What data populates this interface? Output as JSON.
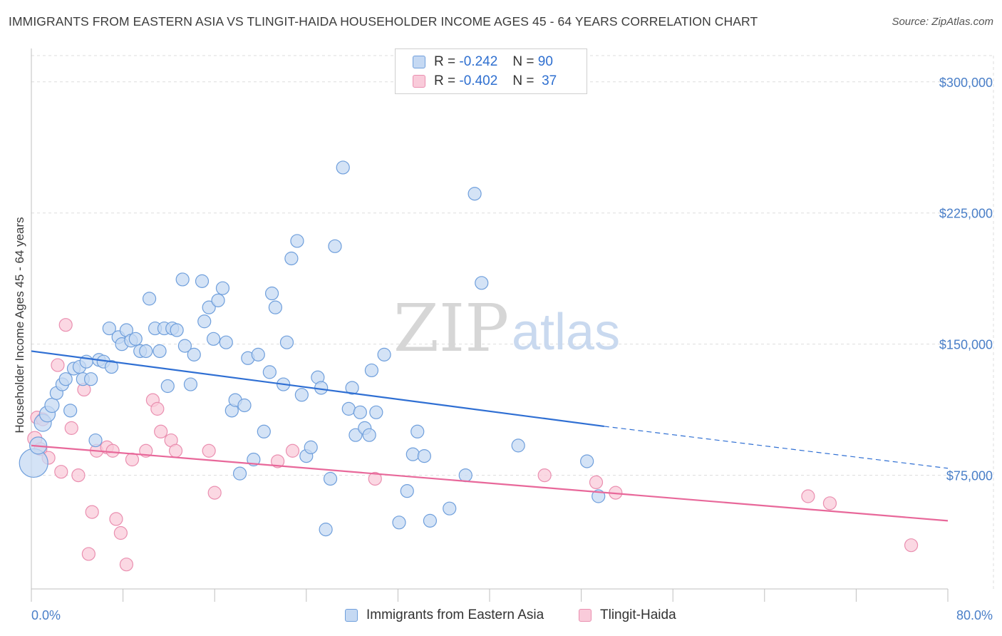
{
  "title": "IMMIGRANTS FROM EASTERN ASIA VS TLINGIT-HAIDA HOUSEHOLDER INCOME AGES 45 - 64 YEARS CORRELATION CHART",
  "source": "Source: ZipAtlas.com",
  "watermark": {
    "zip": "ZIP",
    "atlas": "atlas"
  },
  "legend": [
    {
      "r_label": "R =",
      "r_value": "-0.242",
      "n_label": "N =",
      "n_value": "90"
    },
    {
      "r_label": "R =",
      "r_value": "-0.402",
      "n_label": "N =",
      "n_value": "37"
    }
  ],
  "colors": {
    "blue_fill": "#c5d9f3",
    "blue_stroke": "#6f9fdc",
    "blue_line": "#2f6fd3",
    "pink_fill": "#f9cbda",
    "pink_stroke": "#ea8fb0",
    "pink_line": "#e8689a",
    "grid": "#dddddd",
    "tick_text": "#4a7fc8"
  },
  "chart_data": {
    "type": "scatter",
    "title": "IMMIGRANTS FROM EASTERN ASIA VS TLINGIT-HAIDA HOUSEHOLDER INCOME AGES 45 - 64 YEARS CORRELATION CHART",
    "xlabel": "",
    "ylabel": "Householder Income Ages 45 - 64 years",
    "xlim": [
      0,
      80
    ],
    "ylim": [
      10000,
      315000
    ],
    "x_tick_labels": [
      "0.0%",
      "80.0%"
    ],
    "y_ticks": [
      75000,
      150000,
      225000,
      300000
    ],
    "y_tick_labels": [
      "$75,000",
      "$150,000",
      "$225,000",
      "$300,000"
    ],
    "grid": true,
    "legend_position": "top-center",
    "series": [
      {
        "name": "Immigrants from Eastern Asia",
        "r": -0.242,
        "n": 90,
        "trend": {
          "x0": 0,
          "y0": 146000,
          "x1": 50,
          "y1": 103000,
          "dash_to_x": 80,
          "dash_to_y": 79000
        },
        "points": [
          [
            0.2,
            82000,
            20
          ],
          [
            0.6,
            92000,
            12
          ],
          [
            1.0,
            105000,
            12
          ],
          [
            1.4,
            110000,
            11
          ],
          [
            1.8,
            115000,
            10
          ],
          [
            2.2,
            122000,
            9
          ],
          [
            2.7,
            127000,
            9
          ],
          [
            3.0,
            130000,
            9
          ],
          [
            3.4,
            112000,
            9
          ],
          [
            3.7,
            136000,
            9
          ],
          [
            4.2,
            137000,
            9
          ],
          [
            4.5,
            130000,
            9
          ],
          [
            4.8,
            140000,
            9
          ],
          [
            5.2,
            130000,
            9
          ],
          [
            5.6,
            95000,
            9
          ],
          [
            5.9,
            141000,
            9
          ],
          [
            6.3,
            140000,
            9
          ],
          [
            7.0,
            137000,
            9
          ],
          [
            6.8,
            159000,
            9
          ],
          [
            7.6,
            154000,
            9
          ],
          [
            7.9,
            150000,
            9
          ],
          [
            8.3,
            158000,
            9
          ],
          [
            8.7,
            152000,
            9
          ],
          [
            9.1,
            153000,
            9
          ],
          [
            9.5,
            146000,
            9
          ],
          [
            10.0,
            146000,
            9
          ],
          [
            10.3,
            176000,
            9
          ],
          [
            10.8,
            159000,
            9
          ],
          [
            11.2,
            146000,
            9
          ],
          [
            11.6,
            159000,
            9
          ],
          [
            11.9,
            126000,
            9
          ],
          [
            12.3,
            159000,
            9
          ],
          [
            12.7,
            158000,
            9
          ],
          [
            13.2,
            187000,
            9
          ],
          [
            13.4,
            149000,
            9
          ],
          [
            13.9,
            127000,
            9
          ],
          [
            14.2,
            144000,
            9
          ],
          [
            14.9,
            186000,
            9
          ],
          [
            15.1,
            163000,
            9
          ],
          [
            15.5,
            171000,
            9
          ],
          [
            15.9,
            153000,
            9
          ],
          [
            16.3,
            175000,
            9
          ],
          [
            16.7,
            182000,
            9
          ],
          [
            17.0,
            151000,
            9
          ],
          [
            17.5,
            112000,
            9
          ],
          [
            17.8,
            118000,
            9
          ],
          [
            18.2,
            76000,
            9
          ],
          [
            18.6,
            115000,
            9
          ],
          [
            18.9,
            142000,
            9
          ],
          [
            19.4,
            84000,
            9
          ],
          [
            19.8,
            144000,
            9
          ],
          [
            20.3,
            100000,
            9
          ],
          [
            20.8,
            134000,
            9
          ],
          [
            21.0,
            179000,
            9
          ],
          [
            21.3,
            171000,
            9
          ],
          [
            22.0,
            127000,
            9
          ],
          [
            22.3,
            151000,
            9
          ],
          [
            22.7,
            199000,
            9
          ],
          [
            23.2,
            209000,
            9
          ],
          [
            23.6,
            121000,
            9
          ],
          [
            24.0,
            86000,
            9
          ],
          [
            24.4,
            91000,
            9
          ],
          [
            25.0,
            131000,
            9
          ],
          [
            25.3,
            125000,
            9
          ],
          [
            25.7,
            44000,
            9
          ],
          [
            26.1,
            73000,
            9
          ],
          [
            26.5,
            206000,
            9
          ],
          [
            27.2,
            251000,
            9
          ],
          [
            27.7,
            113000,
            9
          ],
          [
            28.0,
            125000,
            9
          ],
          [
            28.3,
            98000,
            9
          ],
          [
            28.7,
            111000,
            9
          ],
          [
            29.1,
            102000,
            9
          ],
          [
            29.5,
            98000,
            9
          ],
          [
            29.7,
            135000,
            9
          ],
          [
            30.1,
            111000,
            9
          ],
          [
            30.8,
            144000,
            9
          ],
          [
            32.1,
            48000,
            9
          ],
          [
            32.8,
            66000,
            9
          ],
          [
            33.3,
            87000,
            9
          ],
          [
            33.7,
            100000,
            9
          ],
          [
            34.3,
            86000,
            9
          ],
          [
            34.8,
            49000,
            9
          ],
          [
            36.5,
            56000,
            9
          ],
          [
            37.9,
            75000,
            9
          ],
          [
            38.7,
            236000,
            9
          ],
          [
            39.3,
            185000,
            9
          ],
          [
            42.5,
            92000,
            9
          ],
          [
            48.5,
            83000,
            9
          ],
          [
            49.5,
            63000,
            9
          ]
        ]
      },
      {
        "name": "Tlingit-Haida",
        "r": -0.402,
        "n": 37,
        "trend": {
          "x0": 0,
          "y0": 92000,
          "x1": 80,
          "y1": 49000
        },
        "points": [
          [
            0.3,
            96000,
            10
          ],
          [
            0.5,
            108000,
            9
          ],
          [
            0.8,
            90000,
            9
          ],
          [
            1.0,
            107000,
            9
          ],
          [
            1.5,
            85000,
            9
          ],
          [
            2.3,
            138000,
            9
          ],
          [
            2.6,
            77000,
            9
          ],
          [
            3.0,
            161000,
            9
          ],
          [
            3.5,
            102000,
            9
          ],
          [
            4.1,
            75000,
            9
          ],
          [
            4.6,
            124000,
            9
          ],
          [
            5.0,
            30000,
            9
          ],
          [
            5.3,
            54000,
            9
          ],
          [
            5.7,
            89000,
            9
          ],
          [
            6.6,
            91000,
            9
          ],
          [
            7.1,
            89000,
            9
          ],
          [
            7.4,
            50000,
            9
          ],
          [
            7.8,
            42000,
            9
          ],
          [
            8.3,
            24000,
            9
          ],
          [
            8.8,
            84000,
            9
          ],
          [
            10.0,
            89000,
            9
          ],
          [
            10.6,
            118000,
            9
          ],
          [
            11.0,
            113000,
            9
          ],
          [
            11.3,
            100000,
            9
          ],
          [
            12.2,
            95000,
            9
          ],
          [
            12.6,
            89000,
            9
          ],
          [
            15.5,
            89000,
            9
          ],
          [
            16.0,
            65000,
            9
          ],
          [
            21.5,
            83000,
            9
          ],
          [
            22.8,
            89000,
            9
          ],
          [
            30.0,
            73000,
            9
          ],
          [
            44.8,
            75000,
            9
          ],
          [
            49.3,
            71000,
            9
          ],
          [
            51.0,
            65000,
            9
          ],
          [
            67.8,
            63000,
            9
          ],
          [
            69.7,
            59000,
            9
          ],
          [
            76.8,
            35000,
            9
          ]
        ]
      }
    ]
  }
}
